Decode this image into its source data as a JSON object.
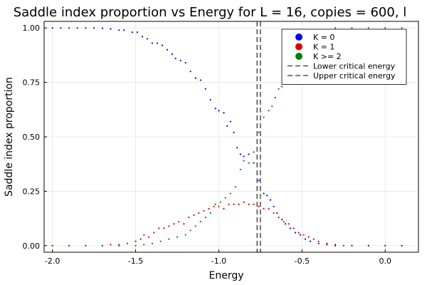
{
  "chart_data": {
    "type": "scatter",
    "title": "Saddle index proportion vs Energy for L = 16, copies = 600, l",
    "xlabel": "Energy",
    "ylabel": "Saddle index proportion",
    "xlim": [
      -2.05,
      0.2
    ],
    "ylim": [
      -0.03,
      1.03
    ],
    "x_ticks": [
      -2.0,
      -1.5,
      -1.0,
      -0.5,
      0.0
    ],
    "x_tick_labels": [
      "-2.0",
      "-1.5",
      "-1.0",
      "-0.5",
      "0.0"
    ],
    "y_ticks": [
      0.0,
      0.25,
      0.5,
      0.75,
      1.0
    ],
    "y_tick_labels": [
      "0.00",
      "0.25",
      "0.50",
      "0.75",
      "1.00"
    ],
    "grid": true,
    "legend_position": "top-right",
    "vlines": [
      {
        "name": "Lower critical energy",
        "x": -0.77,
        "color": "#333333",
        "dash": "dashed"
      },
      {
        "name": "Upper critical energy",
        "x": -0.75,
        "color": "#333333",
        "dash": "dashed"
      }
    ],
    "series": [
      {
        "name": "K = 0",
        "color": "#0000ff",
        "points": [
          [
            -2.0,
            1.0
          ],
          [
            -1.95,
            1.0
          ],
          [
            -1.9,
            1.0
          ],
          [
            -1.85,
            1.0
          ],
          [
            -1.8,
            1.0
          ],
          [
            -1.75,
            1.0
          ],
          [
            -1.7,
            0.998
          ],
          [
            -1.65,
            0.995
          ],
          [
            -1.6,
            0.99
          ],
          [
            -1.57,
            0.99
          ],
          [
            -1.52,
            0.98
          ],
          [
            -1.49,
            0.98
          ],
          [
            -1.46,
            0.96
          ],
          [
            -1.43,
            0.95
          ],
          [
            -1.4,
            0.93
          ],
          [
            -1.37,
            0.93
          ],
          [
            -1.34,
            0.92
          ],
          [
            -1.31,
            0.9
          ],
          [
            -1.28,
            0.88
          ],
          [
            -1.26,
            0.86
          ],
          [
            -1.23,
            0.85
          ],
          [
            -1.2,
            0.84
          ],
          [
            -1.17,
            0.8
          ],
          [
            -1.14,
            0.77
          ],
          [
            -1.11,
            0.76
          ],
          [
            -1.08,
            0.72
          ],
          [
            -1.05,
            0.67
          ],
          [
            -1.02,
            0.63
          ],
          [
            -1.0,
            0.62
          ],
          [
            -0.97,
            0.61
          ],
          [
            -0.95,
            0.55
          ],
          [
            -0.93,
            0.57
          ],
          [
            -0.91,
            0.52
          ],
          [
            -0.89,
            0.45
          ],
          [
            -0.87,
            0.42
          ],
          [
            -0.85,
            0.41
          ],
          [
            -0.82,
            0.42
          ],
          [
            -0.79,
            0.38
          ],
          [
            -0.76,
            0.3
          ],
          [
            -0.73,
            0.24
          ],
          [
            -0.71,
            0.23
          ],
          [
            -0.69,
            0.21
          ],
          [
            -0.67,
            0.18
          ],
          [
            -0.65,
            0.15
          ],
          [
            -0.62,
            0.12
          ],
          [
            -0.6,
            0.1
          ],
          [
            -0.57,
            0.08
          ],
          [
            -0.54,
            0.06
          ],
          [
            -0.51,
            0.05
          ],
          [
            -0.48,
            0.03
          ],
          [
            -0.45,
            0.02
          ],
          [
            -0.4,
            0.01
          ],
          [
            -0.35,
            0.005
          ],
          [
            -0.3,
            0.0
          ],
          [
            -0.2,
            0.0
          ],
          [
            -0.1,
            0.0
          ],
          [
            0.0,
            0.0
          ],
          [
            0.1,
            0.0
          ]
        ]
      },
      {
        "name": "K = 1",
        "color": "#dd0000",
        "points": [
          [
            -2.0,
            0.0
          ],
          [
            -1.9,
            0.0
          ],
          [
            -1.8,
            0.0
          ],
          [
            -1.7,
            0.0
          ],
          [
            -1.65,
            0.005
          ],
          [
            -1.6,
            0.005
          ],
          [
            -1.55,
            0.01
          ],
          [
            -1.5,
            0.02
          ],
          [
            -1.47,
            0.03
          ],
          [
            -1.45,
            0.05
          ],
          [
            -1.42,
            0.04
          ],
          [
            -1.39,
            0.06
          ],
          [
            -1.36,
            0.08
          ],
          [
            -1.33,
            0.08
          ],
          [
            -1.3,
            0.09
          ],
          [
            -1.27,
            0.1
          ],
          [
            -1.24,
            0.11
          ],
          [
            -1.21,
            0.1
          ],
          [
            -1.18,
            0.13
          ],
          [
            -1.15,
            0.14
          ],
          [
            -1.12,
            0.15
          ],
          [
            -1.09,
            0.16
          ],
          [
            -1.06,
            0.17
          ],
          [
            -1.03,
            0.18
          ],
          [
            -1.0,
            0.18
          ],
          [
            -0.97,
            0.17
          ],
          [
            -0.94,
            0.19
          ],
          [
            -0.91,
            0.19
          ],
          [
            -0.88,
            0.19
          ],
          [
            -0.85,
            0.2
          ],
          [
            -0.82,
            0.19
          ],
          [
            -0.79,
            0.19
          ],
          [
            -0.76,
            0.18
          ],
          [
            -0.73,
            0.17
          ],
          [
            -0.7,
            0.17
          ],
          [
            -0.67,
            0.15
          ],
          [
            -0.64,
            0.13
          ],
          [
            -0.61,
            0.11
          ],
          [
            -0.58,
            0.1
          ],
          [
            -0.55,
            0.08
          ],
          [
            -0.52,
            0.06
          ],
          [
            -0.49,
            0.05
          ],
          [
            -0.46,
            0.04
          ],
          [
            -0.43,
            0.03
          ],
          [
            -0.4,
            0.02
          ],
          [
            -0.35,
            0.01
          ],
          [
            -0.3,
            0.005
          ],
          [
            -0.25,
            0.0
          ],
          [
            -0.1,
            0.0
          ],
          [
            0.0,
            0.0
          ]
        ]
      },
      {
        "name": "K >= 2",
        "color": "#008000",
        "points": [
          [
            -2.0,
            0.0
          ],
          [
            -1.9,
            0.0
          ],
          [
            -1.8,
            0.0
          ],
          [
            -1.7,
            0.0
          ],
          [
            -1.6,
            0.0
          ],
          [
            -1.5,
            0.0
          ],
          [
            -1.45,
            0.005
          ],
          [
            -1.4,
            0.01
          ],
          [
            -1.35,
            0.02
          ],
          [
            -1.3,
            0.03
          ],
          [
            -1.25,
            0.04
          ],
          [
            -1.2,
            0.05
          ],
          [
            -1.17,
            0.07
          ],
          [
            -1.14,
            0.09
          ],
          [
            -1.11,
            0.11
          ],
          [
            -1.08,
            0.13
          ],
          [
            -1.05,
            0.15
          ],
          [
            -1.02,
            0.19
          ],
          [
            -0.99,
            0.2
          ],
          [
            -0.96,
            0.22
          ],
          [
            -0.93,
            0.24
          ],
          [
            -0.9,
            0.27
          ],
          [
            -0.87,
            0.35
          ],
          [
            -0.85,
            0.39
          ],
          [
            -0.82,
            0.38
          ],
          [
            -0.79,
            0.43
          ],
          [
            -0.76,
            0.52
          ],
          [
            -0.73,
            0.59
          ],
          [
            -0.7,
            0.62
          ],
          [
            -0.68,
            0.64
          ],
          [
            -0.66,
            0.68
          ],
          [
            -0.64,
            0.72
          ],
          [
            -0.62,
            0.73
          ],
          [
            -0.6,
            0.77
          ],
          [
            -0.57,
            0.8
          ],
          [
            -0.54,
            0.83
          ],
          [
            -0.51,
            0.87
          ],
          [
            -0.48,
            0.89
          ],
          [
            -0.45,
            0.93
          ],
          [
            -0.42,
            0.95
          ],
          [
            -0.39,
            0.97
          ],
          [
            -0.36,
            0.98
          ],
          [
            -0.33,
            0.99
          ],
          [
            -0.3,
            1.0
          ],
          [
            -0.2,
            1.0
          ],
          [
            -0.1,
            1.0
          ],
          [
            0.0,
            1.0
          ],
          [
            0.1,
            1.0
          ]
        ]
      }
    ]
  }
}
